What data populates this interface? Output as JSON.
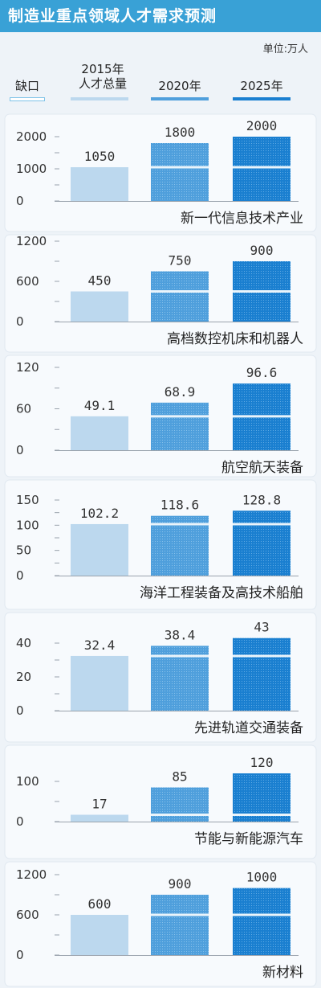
{
  "unit": "单位:万人",
  "legend": {
    "gap": "缺口",
    "y2015_line1": "2015年",
    "y2015_line2": "人才总量",
    "y2020": "2020年",
    "y2025": "2025年"
  },
  "colors": {
    "title_bar": "#39a1d6",
    "background": "#eef3f8",
    "y2015": "#bcd8ee",
    "y2020": "#4f9fdc",
    "y2025": "#1a7fd0",
    "gap_line": "#eaf4fb"
  },
  "chart_data": [
    {
      "type": "bar",
      "title": "制造业重点领域人才需求预测",
      "category_label": "新一代信息技术产业",
      "categories": [
        "2015年",
        "2020年",
        "2025年"
      ],
      "values": [
        1050,
        1800,
        2000
      ],
      "value_labels": [
        "1050",
        "1800",
        "2000"
      ],
      "ylim": [
        0,
        2000
      ],
      "yticks": [
        0,
        1000,
        2000
      ]
    },
    {
      "type": "bar",
      "category_label": "高档数控机床和机器人",
      "categories": [
        "2015年",
        "2020年",
        "2025年"
      ],
      "values": [
        450,
        750,
        900
      ],
      "value_labels": [
        "450",
        "750",
        "900"
      ],
      "ylim": [
        0,
        1200
      ],
      "yticks": [
        0,
        600,
        1200
      ]
    },
    {
      "type": "bar",
      "category_label": "航空航天装备",
      "categories": [
        "2015年",
        "2020年",
        "2025年"
      ],
      "values": [
        49.1,
        68.9,
        96.6
      ],
      "value_labels": [
        "49.1",
        "68.9",
        "96.6"
      ],
      "ylim": [
        0,
        120
      ],
      "yticks": [
        0,
        60,
        120
      ]
    },
    {
      "type": "bar",
      "category_label": "海洋工程装备及高技术船舶",
      "categories": [
        "2015年",
        "2020年",
        "2025年"
      ],
      "values": [
        102.2,
        118.6,
        128.8
      ],
      "value_labels": [
        "102.2",
        "118.6",
        "128.8"
      ],
      "ylim": [
        0,
        150
      ],
      "yticks": [
        0,
        50,
        100,
        150
      ]
    },
    {
      "type": "bar",
      "category_label": "先进轨道交通装备",
      "categories": [
        "2015年",
        "2020年",
        "2025年"
      ],
      "values": [
        32.4,
        38.4,
        43
      ],
      "value_labels": [
        "32.4",
        "38.4",
        "43"
      ],
      "ylim": [
        0,
        40
      ],
      "yticks": [
        0,
        20,
        40
      ]
    },
    {
      "type": "bar",
      "category_label": "节能与新能源汽车",
      "categories": [
        "2015年",
        "2020年",
        "2025年"
      ],
      "values": [
        17,
        85,
        120
      ],
      "value_labels": [
        "17",
        "85",
        "120"
      ],
      "ylim": [
        0,
        100
      ],
      "yticks": [
        0,
        100
      ]
    },
    {
      "type": "bar",
      "category_label": "新材料",
      "categories": [
        "2015年",
        "2020年",
        "2025年"
      ],
      "values": [
        600,
        900,
        1000
      ],
      "value_labels": [
        "600",
        "900",
        "1000"
      ],
      "ylim": [
        0,
        1200
      ],
      "yticks": [
        0,
        600,
        1200
      ]
    }
  ]
}
